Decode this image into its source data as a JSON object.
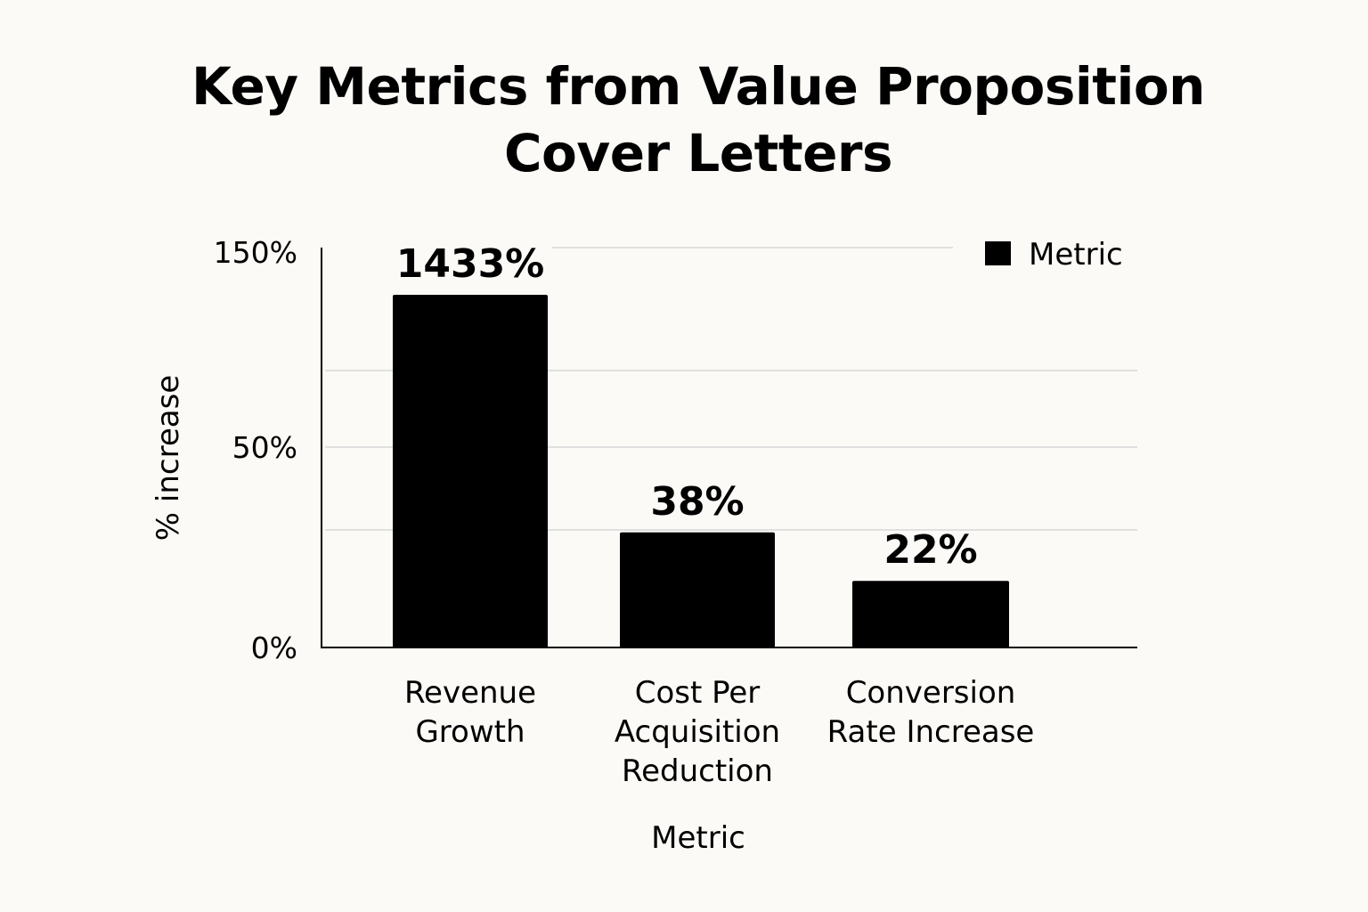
{
  "chart_data": {
    "type": "bar",
    "title": [
      "Key Metrics from Value Proposition",
      "Cover Letters"
    ],
    "xlabel": "Metric",
    "ylabel": "% increase",
    "categories": [
      [
        "Revenue",
        "Growth"
      ],
      [
        "Cost Per",
        "Acquisition",
        "Reduction"
      ],
      [
        "Conversion",
        "Rate Increase"
      ]
    ],
    "values": [
      1433,
      38,
      22
    ],
    "data_labels": [
      "1433%",
      "38%",
      "22%"
    ],
    "y_ticks": [
      {
        "value": 0,
        "label": "0%"
      },
      {
        "value": 50,
        "label": "50%"
      },
      {
        "value": 150,
        "label": "150%"
      }
    ],
    "ylim": [
      0,
      150
    ],
    "grid": true,
    "legend": {
      "label": "Metric",
      "position": "top-right"
    },
    "bar_color": "#000000"
  }
}
